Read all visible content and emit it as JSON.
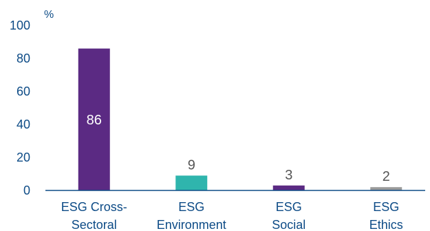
{
  "chart_data": {
    "type": "bar",
    "unit_label": "%",
    "categories": [
      [
        "ESG Cross-",
        "Sectoral"
      ],
      [
        "ESG",
        "Environment"
      ],
      [
        "ESG",
        "Social"
      ],
      [
        "ESG",
        "Ethics"
      ]
    ],
    "values": [
      86,
      9,
      3,
      2
    ],
    "value_labels": [
      "86",
      "9",
      "3",
      "2"
    ],
    "bar_colors": [
      "#5b2a83",
      "#2fb5ad",
      "#5b2a83",
      "#9a9a9a"
    ],
    "label_colors": [
      "#ffffff",
      "#555555",
      "#555555",
      "#555555"
    ],
    "label_inside": [
      true,
      false,
      false,
      false
    ],
    "ylim": [
      0,
      100
    ],
    "yticks": [
      0,
      20,
      40,
      60,
      80,
      100
    ],
    "ytick_labels": [
      "0",
      "20",
      "40",
      "60",
      "80",
      "100"
    ],
    "grid": false,
    "axis_color": "#0d4b86",
    "text_color": "#0d4b86"
  }
}
